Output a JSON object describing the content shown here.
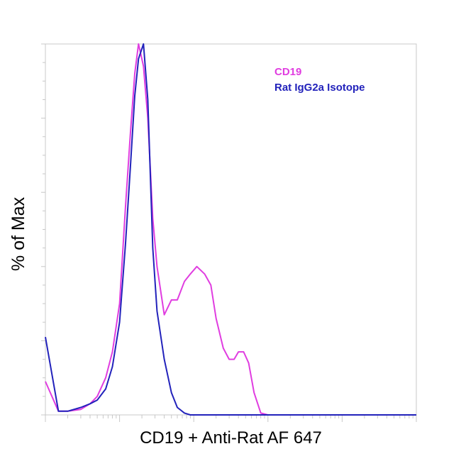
{
  "chart_data": {
    "type": "line",
    "title": "",
    "xlabel": "CD19 + Anti-Rat AF 647",
    "ylabel": "% of Max",
    "xscale": "log",
    "xlim": [
      1,
      100000
    ],
    "ylim": [
      0,
      100
    ],
    "grid": false,
    "legend_placement": "top-right",
    "series": [
      {
        "name": "CD19",
        "color": "#e03de0",
        "x": [
          1,
          1.5,
          2,
          3,
          4,
          5,
          6.5,
          8,
          10,
          12,
          14,
          16,
          18,
          21,
          24,
          28,
          32,
          40,
          50,
          60,
          75,
          90,
          110,
          140,
          170,
          200,
          250,
          300,
          350,
          400,
          470,
          550,
          650,
          800,
          1000,
          1200,
          100000
        ],
        "y": [
          9,
          1,
          1,
          1.5,
          3,
          5,
          10,
          17,
          30,
          56,
          76,
          92,
          100,
          94,
          80,
          53,
          40,
          27,
          31,
          31,
          36,
          38,
          40,
          38,
          35,
          26,
          18,
          15,
          15,
          17,
          17,
          14,
          6,
          0.5,
          0,
          0,
          0
        ]
      },
      {
        "name": "Rat IgG2a Isotope",
        "color": "#2222bb",
        "x": [
          1,
          1.5,
          2,
          3,
          4,
          5,
          6.5,
          8,
          10,
          12,
          14,
          16,
          18,
          21,
          24,
          28,
          32,
          40,
          50,
          60,
          75,
          90,
          110,
          140,
          170,
          200,
          250,
          300,
          350,
          400,
          470,
          550,
          650,
          800,
          1000,
          1200,
          100000
        ],
        "y": [
          21,
          1,
          1,
          2,
          3,
          4,
          7,
          13,
          25,
          46,
          67,
          86,
          96,
          100,
          85,
          45,
          28,
          15,
          6,
          2,
          0.5,
          0,
          0,
          0,
          0,
          0,
          0,
          0,
          0,
          0,
          0,
          0,
          0,
          0,
          0,
          0,
          0
        ]
      }
    ]
  }
}
